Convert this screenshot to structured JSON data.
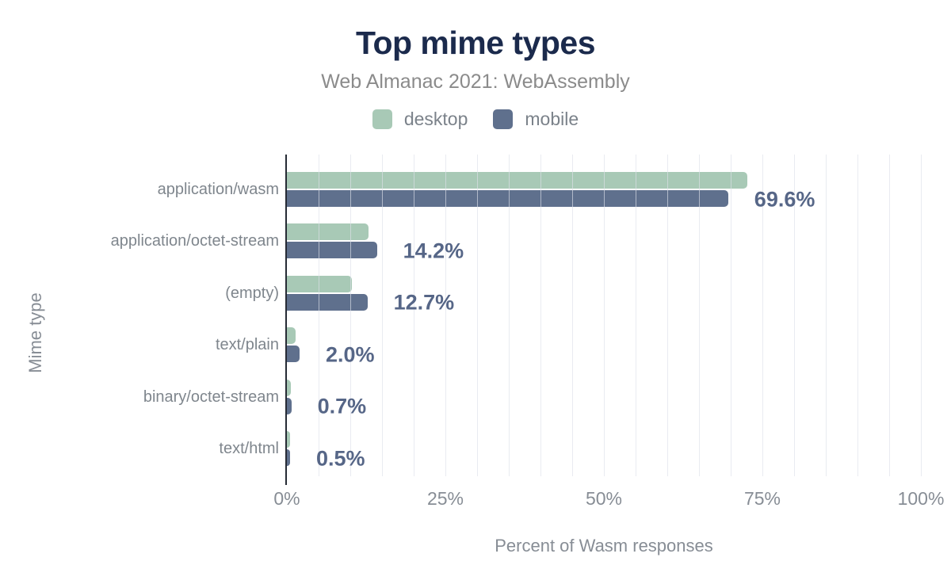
{
  "chart_data": {
    "type": "bar",
    "orientation": "horizontal",
    "title": "Top mime types",
    "subtitle": "Web Almanac 2021: WebAssembly",
    "xlabel": "Percent of Wasm responses",
    "ylabel": "Mime type",
    "xlim": [
      0,
      100
    ],
    "xticks": [
      "0%",
      "25%",
      "50%",
      "75%",
      "100%"
    ],
    "xtick_step_pct": 25,
    "minor_grid_step_pct": 5,
    "grid": true,
    "legend_position": "top-center",
    "categories": [
      "application/wasm",
      "application/octet-stream",
      "(empty)",
      "text/plain",
      "binary/octet-stream",
      "text/html"
    ],
    "series": [
      {
        "name": "desktop",
        "color": "#a8c9b6",
        "values": [
          72.6,
          12.9,
          10.3,
          1.4,
          0.6,
          0.5
        ]
      },
      {
        "name": "mobile",
        "color": "#5f708d",
        "values": [
          69.6,
          14.2,
          12.7,
          2.0,
          0.7,
          0.5
        ]
      }
    ],
    "value_labels": {
      "labeled_series": "mobile",
      "labels": [
        "69.6%",
        "14.2%",
        "12.7%",
        "2.0%",
        "0.7%",
        "0.5%"
      ]
    },
    "colors": {
      "title": "#1b2a4c",
      "subtitle": "#8b8b8b",
      "legend_text": "#7b828a",
      "category_text": "#7f868d",
      "axis_text": "#878d95",
      "value_label": "#566687",
      "axis_line": "#262b35",
      "gridline": "#e9ebf1",
      "background": "#ffffff"
    }
  }
}
